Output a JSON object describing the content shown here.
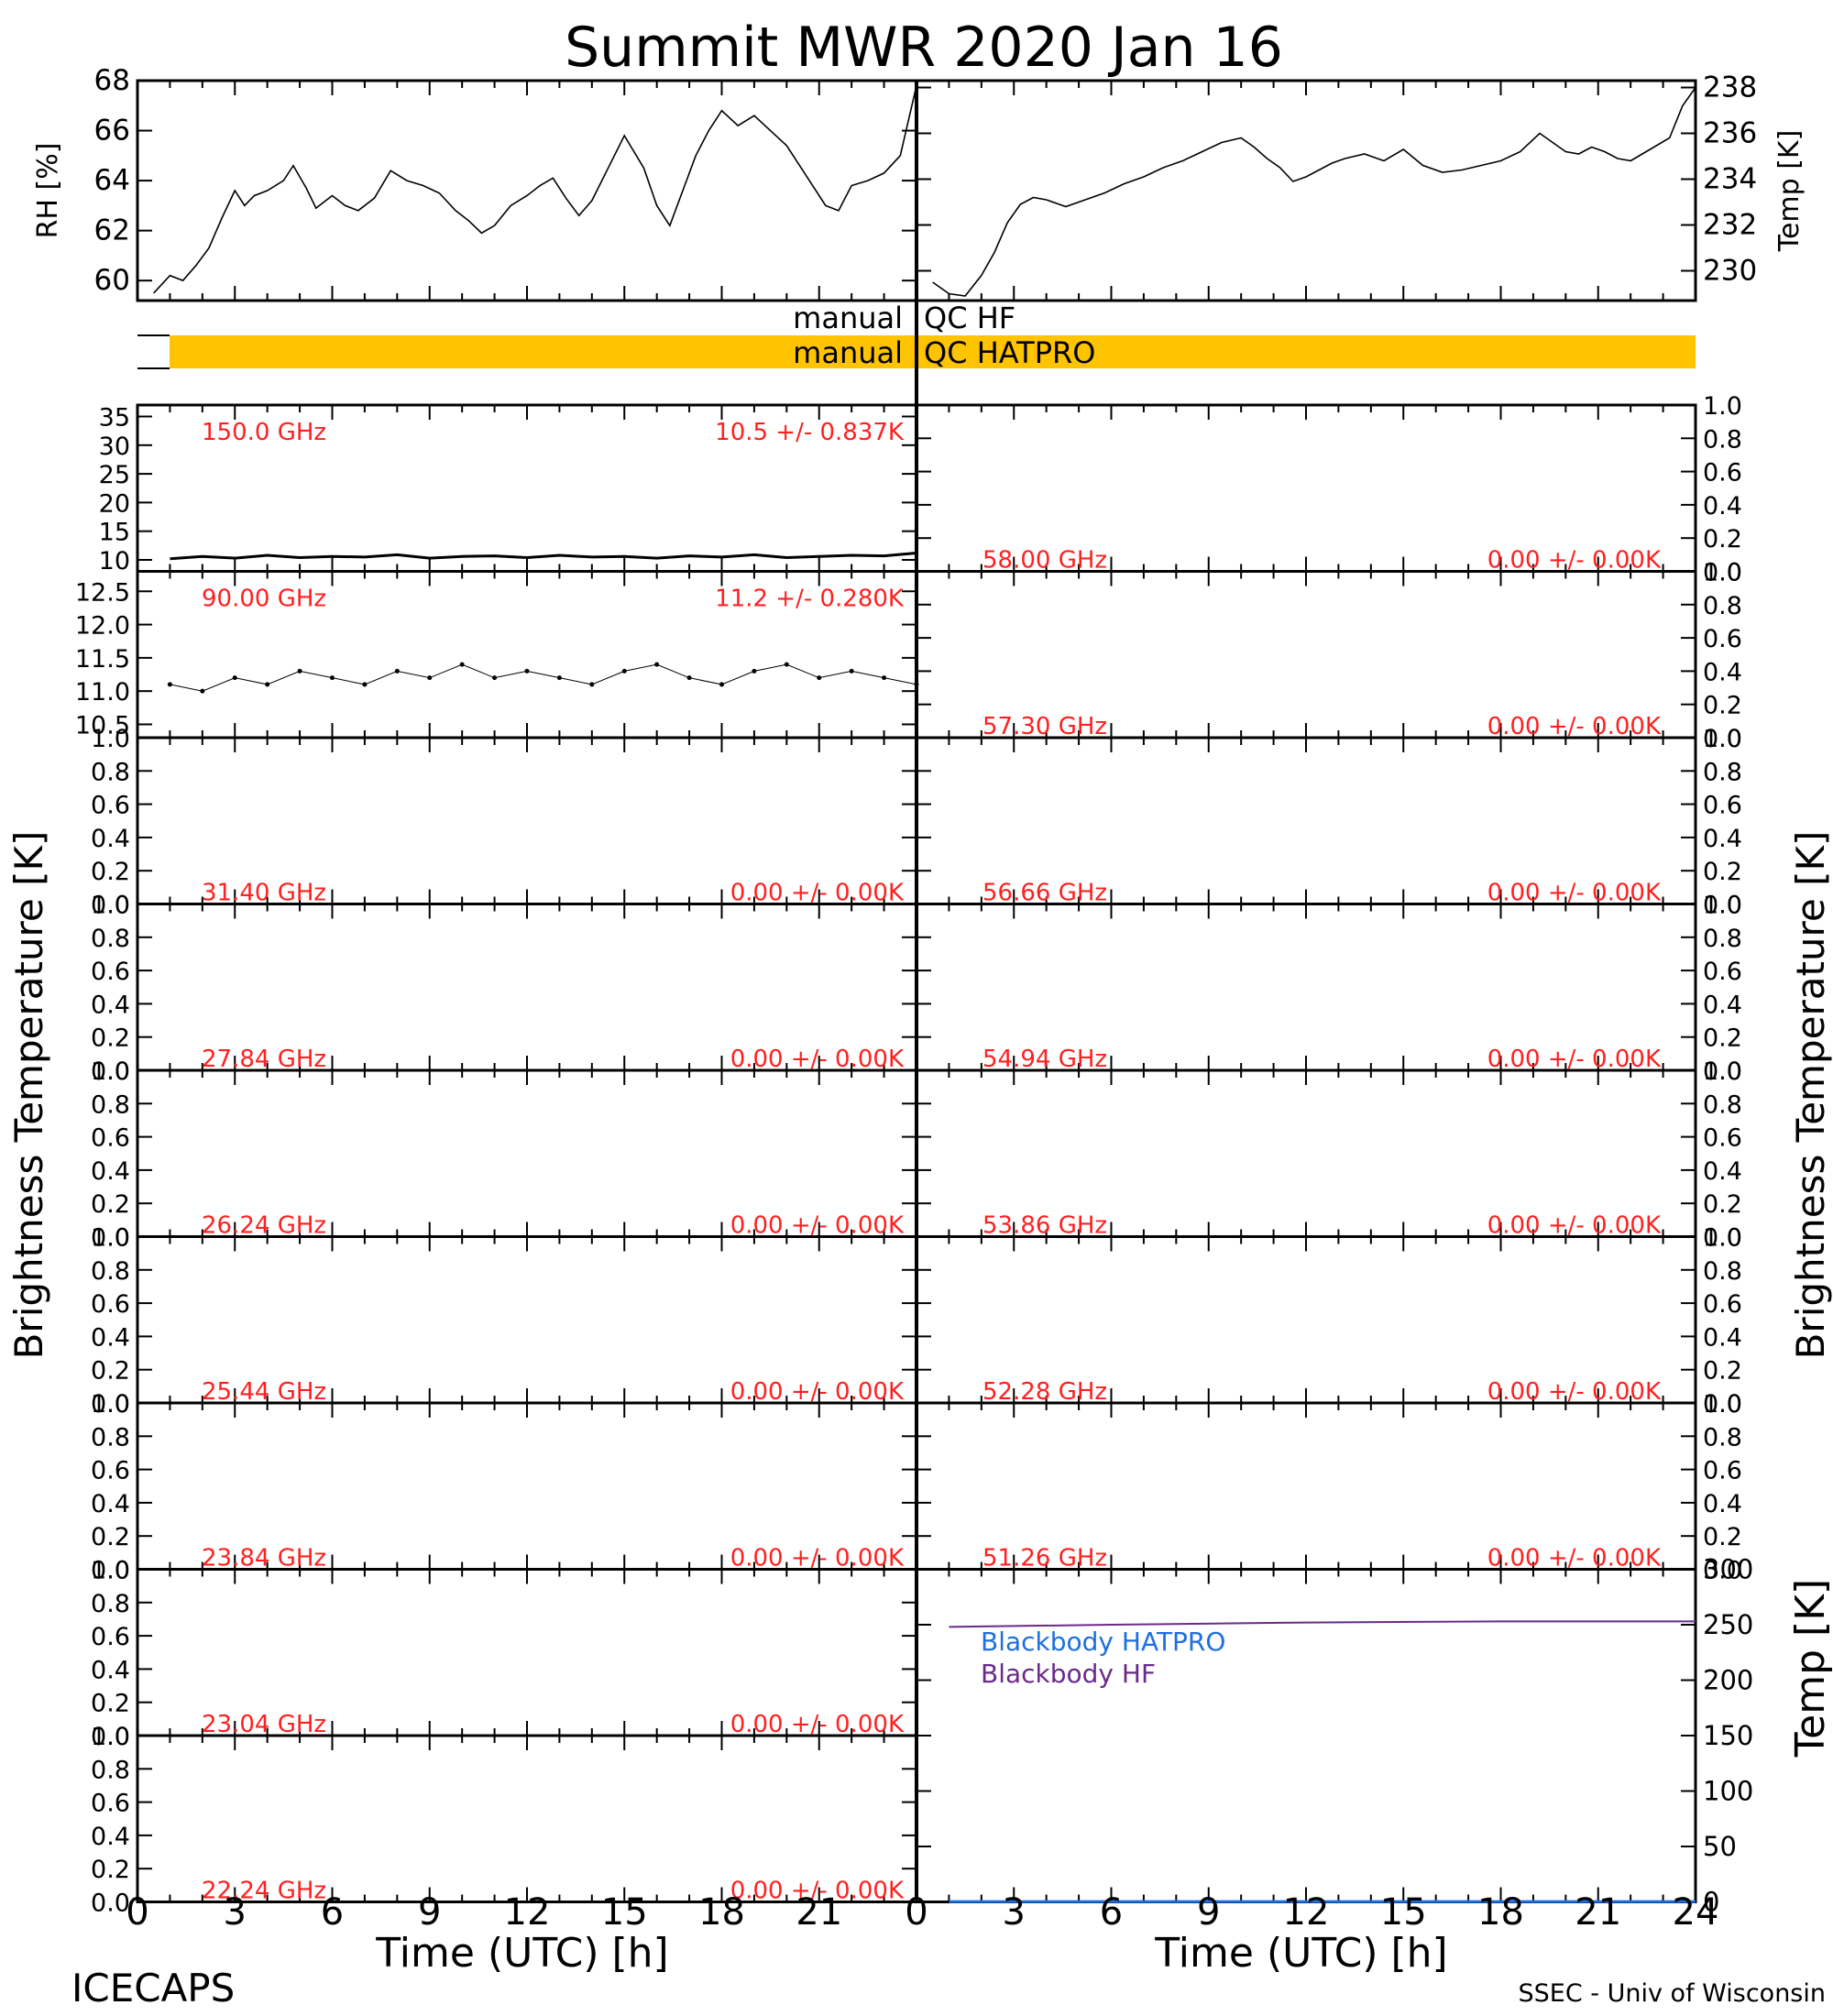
{
  "title": "Summit MWR 2020 Jan 16",
  "footer_left": "ICECAPS",
  "footer_right": "SSEC - Univ of Wisconsin",
  "x_axis_label": "Time (UTC) [h]",
  "x_ticks": [
    "0",
    "3",
    "6",
    "9",
    "12",
    "15",
    "18",
    "21",
    "24"
  ],
  "left_panels_x_ticks": [
    "0",
    "3",
    "6",
    "9",
    "12",
    "15",
    "18",
    "21"
  ],
  "brightness_label": "Brightness Temperature [K]",
  "colors": {
    "annotation": "#ff2020",
    "qc_bar": "#ffc400",
    "blackbody_hatpro": "#1e6fe0",
    "blackbody_hf": "#6a2a8a",
    "trace": "#000000"
  },
  "qc": {
    "hf_left": "manual",
    "hf_right": "QC HF",
    "hatpro_left": "manual",
    "hatpro_right": "QC HATPRO",
    "hatpro_flag": "manual QC over ~1-24 h"
  },
  "chart_data": [
    {
      "id": "rh",
      "type": "line",
      "xlabel": "",
      "ylabel": "RH [%]",
      "xlim": [
        0,
        24
      ],
      "ylim": [
        59.2,
        68
      ],
      "yticks": [
        "60",
        "62",
        "64",
        "66",
        "68"
      ],
      "x": [
        0.5,
        1.0,
        1.4,
        1.8,
        2.2,
        2.6,
        3.0,
        3.3,
        3.6,
        4.0,
        4.5,
        4.8,
        5.2,
        5.5,
        6.0,
        6.4,
        6.8,
        7.3,
        7.8,
        8.3,
        8.8,
        9.3,
        9.8,
        10.2,
        10.6,
        11.0,
        11.5,
        12.0,
        12.4,
        12.8,
        13.2,
        13.6,
        14.0,
        14.5,
        15.0,
        15.6,
        16.0,
        16.4,
        16.8,
        17.2,
        17.6,
        18.0,
        18.5,
        19.0,
        19.5,
        20.0,
        20.4,
        20.8,
        21.2,
        21.6,
        22.0,
        22.5,
        23.0,
        23.5,
        24.0
      ],
      "values": [
        59.5,
        60.2,
        60.0,
        60.6,
        61.3,
        62.5,
        63.6,
        63.0,
        63.4,
        63.6,
        64.0,
        64.6,
        63.7,
        62.9,
        63.4,
        63.0,
        62.8,
        63.3,
        64.4,
        64.0,
        63.8,
        63.5,
        62.8,
        62.4,
        61.9,
        62.2,
        63.0,
        63.4,
        63.8,
        64.1,
        63.3,
        62.6,
        63.2,
        64.5,
        65.8,
        64.5,
        63.0,
        62.2,
        63.6,
        65.0,
        66.0,
        66.8,
        66.2,
        66.6,
        66.0,
        65.4,
        64.6,
        63.8,
        63.0,
        62.8,
        63.8,
        64.0,
        64.3,
        65.0,
        67.8
      ]
    },
    {
      "id": "temp",
      "type": "line",
      "xlabel": "",
      "ylabel": "Temp [K]",
      "xlim": [
        0,
        24
      ],
      "ylim": [
        228.7,
        238.3
      ],
      "yticks": [
        "230",
        "232",
        "234",
        "236",
        "238"
      ],
      "x": [
        0.5,
        1.0,
        1.5,
        2.0,
        2.4,
        2.8,
        3.2,
        3.6,
        4.0,
        4.6,
        5.2,
        5.8,
        6.4,
        7.0,
        7.6,
        8.2,
        8.8,
        9.4,
        10.0,
        10.4,
        10.8,
        11.2,
        11.6,
        12.0,
        12.4,
        12.8,
        13.2,
        13.8,
        14.4,
        15.0,
        15.6,
        16.2,
        16.8,
        17.4,
        18.0,
        18.6,
        19.2,
        19.6,
        20.0,
        20.4,
        20.8,
        21.2,
        21.6,
        22.0,
        22.6,
        23.2,
        23.6,
        24.0
      ],
      "values": [
        229.5,
        229.0,
        228.9,
        229.8,
        230.8,
        232.1,
        232.9,
        233.2,
        233.1,
        232.8,
        233.1,
        233.4,
        233.8,
        234.1,
        234.5,
        234.8,
        235.2,
        235.6,
        235.8,
        235.4,
        234.9,
        234.5,
        233.9,
        234.1,
        234.4,
        234.7,
        234.9,
        235.1,
        234.8,
        235.3,
        234.6,
        234.3,
        234.4,
        234.6,
        234.8,
        235.2,
        236.0,
        235.6,
        235.2,
        235.1,
        235.4,
        235.2,
        234.9,
        234.8,
        235.3,
        235.8,
        237.2,
        238.0
      ]
    },
    {
      "id": "150",
      "type": "line",
      "xlim": [
        0,
        24
      ],
      "ylim": [
        8,
        37
      ],
      "yticks": [
        "10",
        "15",
        "20",
        "25",
        "30",
        "35"
      ],
      "freq_label": "150.0 GHz",
      "stat_label": "10.5 +/- 0.837K",
      "x": [
        1.0,
        2.0,
        3.0,
        4.0,
        5.0,
        6.0,
        7.0,
        8.0,
        9.0,
        10.0,
        11.0,
        12.0,
        13.0,
        14.0,
        15.0,
        16.0,
        17.0,
        18.0,
        19.0,
        20.0,
        21.0,
        22.0,
        23.0,
        24.0
      ],
      "values": [
        10.2,
        10.6,
        10.3,
        10.8,
        10.4,
        10.6,
        10.5,
        10.9,
        10.3,
        10.6,
        10.7,
        10.4,
        10.8,
        10.5,
        10.6,
        10.3,
        10.7,
        10.5,
        10.9,
        10.4,
        10.6,
        10.8,
        10.7,
        11.2
      ]
    },
    {
      "id": "90",
      "type": "scatter",
      "xlim": [
        0,
        24
      ],
      "ylim": [
        10.3,
        12.8
      ],
      "yticks": [
        "10.5",
        "11.0",
        "11.5",
        "12.0",
        "12.5"
      ],
      "freq_label": "90.00 GHz",
      "stat_label": "11.2 +/- 0.280K",
      "x": [
        1.0,
        2.0,
        3.0,
        4.0,
        5.0,
        6.0,
        7.0,
        8.0,
        9.0,
        10.0,
        11.0,
        12.0,
        13.0,
        14.0,
        15.0,
        16.0,
        17.0,
        18.0,
        19.0,
        20.0,
        21.0,
        22.0,
        23.0,
        24.0
      ],
      "values": [
        11.1,
        11.0,
        11.2,
        11.1,
        11.3,
        11.2,
        11.1,
        11.3,
        11.2,
        11.4,
        11.2,
        11.3,
        11.2,
        11.1,
        11.3,
        11.4,
        11.2,
        11.1,
        11.3,
        11.4,
        11.2,
        11.3,
        11.2,
        11.1
      ]
    },
    {
      "id": "31",
      "type": "line",
      "ylim": [
        0,
        1
      ],
      "yticks": [
        "0.0",
        "0.2",
        "0.4",
        "0.6",
        "0.8",
        "1.0"
      ],
      "freq_label": "31.40 GHz",
      "stat_label": "0.00 +/- 0.00K",
      "x": [],
      "values": []
    },
    {
      "id": "27",
      "type": "line",
      "ylim": [
        0,
        1
      ],
      "yticks": [
        "0.0",
        "0.2",
        "0.4",
        "0.6",
        "0.8",
        "1.0"
      ],
      "freq_label": "27.84 GHz",
      "stat_label": "0.00 +/- 0.00K",
      "x": [],
      "values": []
    },
    {
      "id": "26",
      "type": "line",
      "ylim": [
        0,
        1
      ],
      "yticks": [
        "0.0",
        "0.2",
        "0.4",
        "0.6",
        "0.8",
        "1.0"
      ],
      "freq_label": "26.24 GHz",
      "stat_label": "0.00 +/- 0.00K",
      "x": [],
      "values": []
    },
    {
      "id": "25",
      "type": "line",
      "ylim": [
        0,
        1
      ],
      "yticks": [
        "0.0",
        "0.2",
        "0.4",
        "0.6",
        "0.8",
        "1.0"
      ],
      "freq_label": "25.44 GHz",
      "stat_label": "0.00 +/- 0.00K",
      "x": [],
      "values": []
    },
    {
      "id": "23b",
      "type": "line",
      "ylim": [
        0,
        1
      ],
      "yticks": [
        "0.0",
        "0.2",
        "0.4",
        "0.6",
        "0.8",
        "1.0"
      ],
      "freq_label": "23.84 GHz",
      "stat_label": "0.00 +/- 0.00K",
      "x": [],
      "values": []
    },
    {
      "id": "23a",
      "type": "line",
      "ylim": [
        0,
        1
      ],
      "yticks": [
        "0.0",
        "0.2",
        "0.4",
        "0.6",
        "0.8",
        "1.0"
      ],
      "freq_label": "23.04 GHz",
      "stat_label": "0.00 +/- 0.00K",
      "x": [],
      "values": []
    },
    {
      "id": "22",
      "type": "line",
      "ylim": [
        0,
        1
      ],
      "yticks": [
        "0.0",
        "0.2",
        "0.4",
        "0.6",
        "0.8",
        "1.0"
      ],
      "freq_label": "22.24 GHz",
      "stat_label": "0.00 +/- 0.00K",
      "x": [],
      "values": []
    },
    {
      "id": "58",
      "type": "line",
      "ylim": [
        0,
        1
      ],
      "yticks": [
        "0.0",
        "0.2",
        "0.4",
        "0.6",
        "0.8",
        "1.0"
      ],
      "freq_label": "58.00 GHz",
      "stat_label": "0.00 +/- 0.00K",
      "x": [],
      "values": []
    },
    {
      "id": "57",
      "type": "line",
      "ylim": [
        0,
        1
      ],
      "yticks": [
        "0.0",
        "0.2",
        "0.4",
        "0.6",
        "0.8",
        "1.0"
      ],
      "freq_label": "57.30 GHz",
      "stat_label": "0.00 +/- 0.00K",
      "x": [],
      "values": []
    },
    {
      "id": "56",
      "type": "line",
      "ylim": [
        0,
        1
      ],
      "yticks": [
        "0.0",
        "0.2",
        "0.4",
        "0.6",
        "0.8",
        "1.0"
      ],
      "freq_label": "56.66 GHz",
      "stat_label": "0.00 +/- 0.00K",
      "x": [],
      "values": []
    },
    {
      "id": "54",
      "type": "line",
      "ylim": [
        0,
        1
      ],
      "yticks": [
        "0.0",
        "0.2",
        "0.4",
        "0.6",
        "0.8",
        "1.0"
      ],
      "freq_label": "54.94 GHz",
      "stat_label": "0.00 +/- 0.00K",
      "x": [],
      "values": []
    },
    {
      "id": "53",
      "type": "line",
      "ylim": [
        0,
        1
      ],
      "yticks": [
        "0.0",
        "0.2",
        "0.4",
        "0.6",
        "0.8",
        "1.0"
      ],
      "freq_label": "53.86 GHz",
      "stat_label": "0.00 +/- 0.00K",
      "x": [],
      "values": []
    },
    {
      "id": "52",
      "type": "line",
      "ylim": [
        0,
        1
      ],
      "yticks": [
        "0.0",
        "0.2",
        "0.4",
        "0.6",
        "0.8",
        "1.0"
      ],
      "freq_label": "52.28 GHz",
      "stat_label": "0.00 +/- 0.00K",
      "x": [],
      "values": []
    },
    {
      "id": "51",
      "type": "line",
      "ylim": [
        0,
        1
      ],
      "yticks": [
        "0.0",
        "0.2",
        "0.4",
        "0.6",
        "0.8",
        "1.0"
      ],
      "freq_label": "51.26 GHz",
      "stat_label": "0.00 +/- 0.00K",
      "x": [],
      "values": []
    },
    {
      "id": "blackbody",
      "type": "line",
      "ylabel": "Temp [K]",
      "xlim": [
        0,
        24
      ],
      "ylim": [
        0,
        300
      ],
      "yticks": [
        "0",
        "50",
        "100",
        "150",
        "200",
        "250",
        "300"
      ],
      "series": [
        {
          "name": "Blackbody HATPRO",
          "x": [
            1,
            24
          ],
          "values": [
            0.3,
            0.3
          ]
        },
        {
          "name": "Blackbody HF",
          "x": [
            1,
            6,
            12,
            18,
            24
          ],
          "values": [
            248,
            250,
            252,
            253,
            253
          ]
        }
      ]
    }
  ]
}
